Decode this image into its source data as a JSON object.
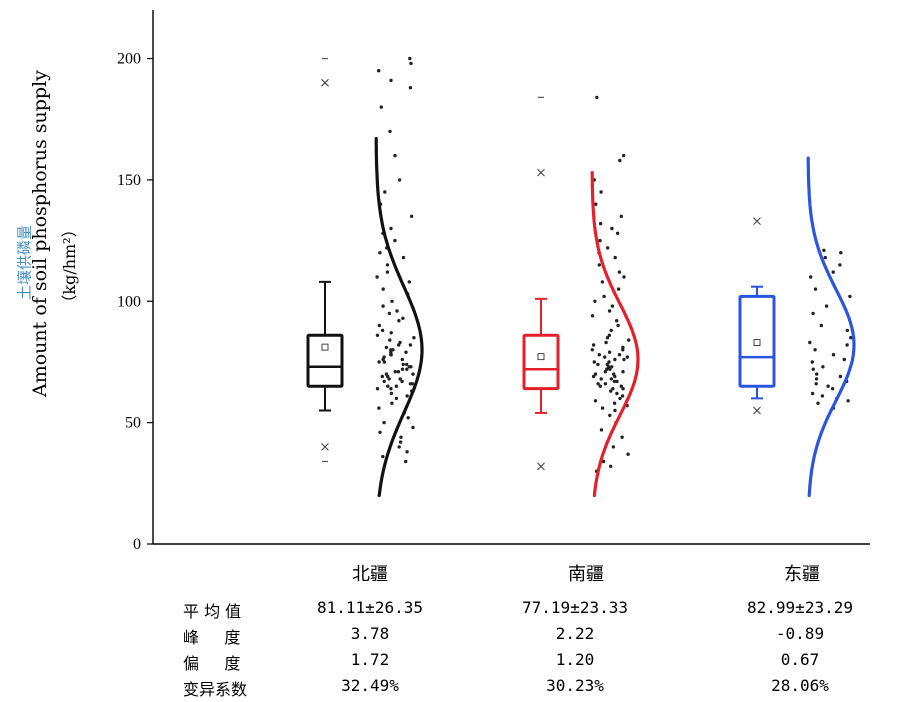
{
  "chart_data": {
    "type": "box-raincloud",
    "ylabel_zh": "土壤供磷量",
    "ylabel_en": "Amount of  soil phosphorus supply",
    "ylabel_unit": "（kg/hm²）",
    "ylim": [
      0,
      220
    ],
    "yticks": [
      0,
      50,
      100,
      150,
      200
    ],
    "grid": false,
    "categories": [
      "北疆",
      "南疆",
      "东疆"
    ],
    "series": [
      {
        "color": "#111111",
        "box": {
          "min": 55,
          "q1": 65,
          "median": 73,
          "q3": 86,
          "max": 108,
          "mean": 81.11
        },
        "outliers": [
          190,
          40
        ],
        "extremes": [
          200,
          34
        ],
        "curve": {
          "center": 80,
          "sd": 26,
          "ymin": 20,
          "ymax": 167
        },
        "points": [
          200,
          198,
          195,
          191,
          188,
          180,
          170,
          160,
          150,
          145,
          140,
          135,
          130,
          128,
          125,
          122,
          120,
          118,
          115,
          112,
          110,
          108,
          105,
          103,
          100,
          98,
          96,
          95,
          93,
          92,
          90,
          88,
          87,
          86,
          85,
          84,
          83,
          82,
          82,
          81,
          80,
          80,
          79,
          79,
          78,
          78,
          77,
          76,
          76,
          75,
          75,
          74,
          74,
          73,
          73,
          72,
          72,
          71,
          71,
          70,
          70,
          69,
          69,
          68,
          68,
          67,
          67,
          66,
          66,
          65,
          65,
          64,
          64,
          63,
          62,
          61,
          60,
          58,
          56,
          54,
          52,
          50,
          48,
          46,
          44,
          42,
          40,
          38,
          36,
          34
        ]
      },
      {
        "color": "#e5202b",
        "box": {
          "min": 54,
          "q1": 64,
          "median": 72,
          "q3": 86,
          "max": 101,
          "mean": 77.19
        },
        "outliers": [
          153,
          32
        ],
        "extremes": [
          184
        ],
        "curve": {
          "center": 76,
          "sd": 23,
          "ymin": 20,
          "ymax": 153
        },
        "points": [
          184,
          160,
          158,
          150,
          145,
          140,
          135,
          132,
          130,
          128,
          125,
          122,
          120,
          118,
          115,
          112,
          110,
          108,
          105,
          102,
          100,
          98,
          96,
          94,
          92,
          90,
          88,
          86,
          85,
          84,
          83,
          82,
          81,
          80,
          80,
          79,
          78,
          78,
          77,
          77,
          76,
          76,
          75,
          75,
          74,
          74,
          73,
          73,
          72,
          72,
          71,
          71,
          70,
          70,
          69,
          69,
          68,
          68,
          67,
          67,
          66,
          66,
          65,
          65,
          64,
          64,
          63,
          62,
          61,
          60,
          59,
          58,
          57,
          56,
          55,
          53,
          50,
          47,
          44,
          40,
          37,
          34,
          32,
          30
        ]
      },
      {
        "color": "#2b55e0",
        "box": {
          "min": 60,
          "q1": 65,
          "median": 77,
          "q3": 102,
          "max": 106,
          "mean": 82.99
        },
        "outliers": [
          133,
          55
        ],
        "extremes": [],
        "curve": {
          "center": 82,
          "sd": 23,
          "ymin": 20,
          "ymax": 159
        },
        "points": [
          121,
          120,
          118,
          115,
          112,
          110,
          105,
          102,
          98,
          95,
          90,
          88,
          85,
          83,
          82,
          80,
          78,
          76,
          75,
          73,
          72,
          70,
          69,
          68,
          67,
          66,
          65,
          64,
          62,
          61,
          60,
          59,
          58,
          56
        ]
      }
    ],
    "stats": {
      "rows": [
        {
          "label": "平 均 值",
          "values": [
            "81.11±26.35",
            "77.19±23.33",
            "82.99±23.29"
          ]
        },
        {
          "label": "峰     度",
          "values": [
            "3.78",
            "2.22",
            "-0.89"
          ]
        },
        {
          "label": "偏     度",
          "values": [
            "1.72",
            "1.20",
            "0.67"
          ]
        },
        {
          "label": "变异系数",
          "values": [
            "32.49%",
            "30.23%",
            "28.06%"
          ]
        }
      ]
    }
  }
}
